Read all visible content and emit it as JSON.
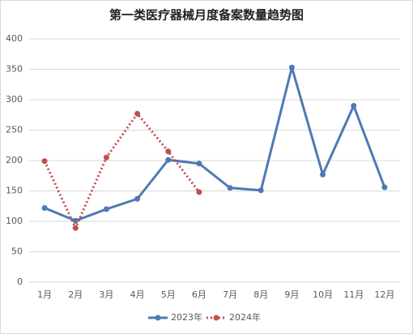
{
  "chart_data": {
    "type": "line",
    "title": "第一类医疗器械月度备案数量趋势图",
    "categories": [
      "1月",
      "2月",
      "3月",
      "4月",
      "5月",
      "6月",
      "7月",
      "8月",
      "9月",
      "10月",
      "11月",
      "12月"
    ],
    "series": [
      {
        "name": "2023年",
        "color": "#4e79b5",
        "line_style": "solid",
        "values": [
          122,
          101,
          120,
          137,
          201,
          195,
          155,
          151,
          353,
          177,
          290,
          156
        ]
      },
      {
        "name": "2024年",
        "color": "#c0504d",
        "line_style": "dotted",
        "values": [
          199,
          89,
          205,
          277,
          215,
          148,
          null,
          null,
          null,
          null,
          null,
          null
        ]
      }
    ],
    "ylim": [
      0,
      400
    ],
    "yticks": [
      0,
      50,
      100,
      150,
      200,
      250,
      300,
      350,
      400
    ],
    "grid": true,
    "legend": "bottom"
  }
}
